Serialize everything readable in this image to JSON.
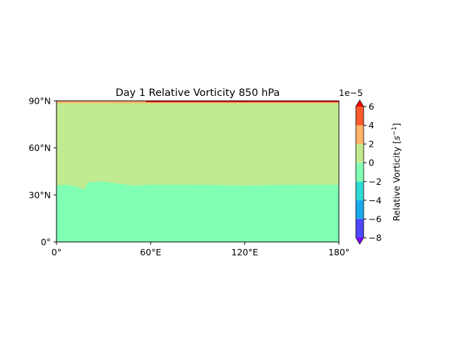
{
  "chart_data": {
    "type": "heatmap",
    "title": "Day 1 Relative Vorticity 850 hPa",
    "x_ticks": [
      {
        "value": 0,
        "label": "0°"
      },
      {
        "value": 60,
        "label": "60°E"
      },
      {
        "value": 120,
        "label": "120°E"
      },
      {
        "value": 180,
        "label": "180°"
      }
    ],
    "y_ticks": [
      {
        "value": 0,
        "label": "0°"
      },
      {
        "value": 30,
        "label": "30°N"
      },
      {
        "value": 60,
        "label": "60°N"
      },
      {
        "value": 90,
        "label": "90°N"
      }
    ],
    "xlim": [
      0,
      180
    ],
    "ylim": [
      0,
      90
    ],
    "colorbar": {
      "label": "Relative Vorticity [s⁻¹]",
      "label_base": "Relative Vorticity [",
      "label_unit": "s",
      "label_exp": "−1",
      "label_close": "]",
      "scale_label": "1e−5",
      "range": [
        -8,
        6
      ],
      "extend": "both",
      "under_color": "#7f00ff",
      "over_color": "#ff0000",
      "levels": [
        {
          "from": -8,
          "to": -6,
          "color": "#4f47fc"
        },
        {
          "from": -6,
          "to": -4,
          "color": "#1aa9ec"
        },
        {
          "from": -4,
          "to": -2,
          "color": "#2cdbd4"
        },
        {
          "from": -2,
          "to": 0,
          "color": "#80ffb4"
        },
        {
          "from": 0,
          "to": 2,
          "color": "#c1eb90"
        },
        {
          "from": 2,
          "to": 4,
          "color": "#ffb46a"
        },
        {
          "from": 4,
          "to": 6,
          "color": "#ff5a2e"
        }
      ],
      "ticks": [
        {
          "value": -8,
          "label": "−8"
        },
        {
          "value": -6,
          "label": "−6"
        },
        {
          "value": -4,
          "label": "−4"
        },
        {
          "value": -2,
          "label": "−2"
        },
        {
          "value": 0,
          "label": "0"
        },
        {
          "value": 2,
          "label": "2"
        },
        {
          "value": 4,
          "label": "4"
        },
        {
          "value": 6,
          "label": "6"
        }
      ]
    },
    "regions": [
      {
        "level": "0 to 2",
        "color": "#c1eb90",
        "lat_range": [
          0,
          90
        ]
      },
      {
        "level": "-2 to 0",
        "color": "#80ffb4",
        "boundary": [
          [
            0,
            36
          ],
          [
            5,
            36.5
          ],
          [
            10,
            36
          ],
          [
            15,
            34.5
          ],
          [
            18,
            33.5
          ],
          [
            20,
            38
          ],
          [
            30,
            38.5
          ],
          [
            40,
            37
          ],
          [
            50,
            36
          ],
          [
            60,
            36.5
          ],
          [
            90,
            36.5
          ],
          [
            120,
            36
          ],
          [
            150,
            36.5
          ],
          [
            180,
            36.5
          ]
        ]
      },
      {
        "level": "2 to 4",
        "color": "#ffb46a",
        "lat_range": [
          88.5,
          90
        ]
      },
      {
        "level": ">6",
        "color": "#ff0000",
        "lon_range": [
          57,
          180
        ],
        "lat_range": [
          89.2,
          90
        ]
      }
    ]
  }
}
